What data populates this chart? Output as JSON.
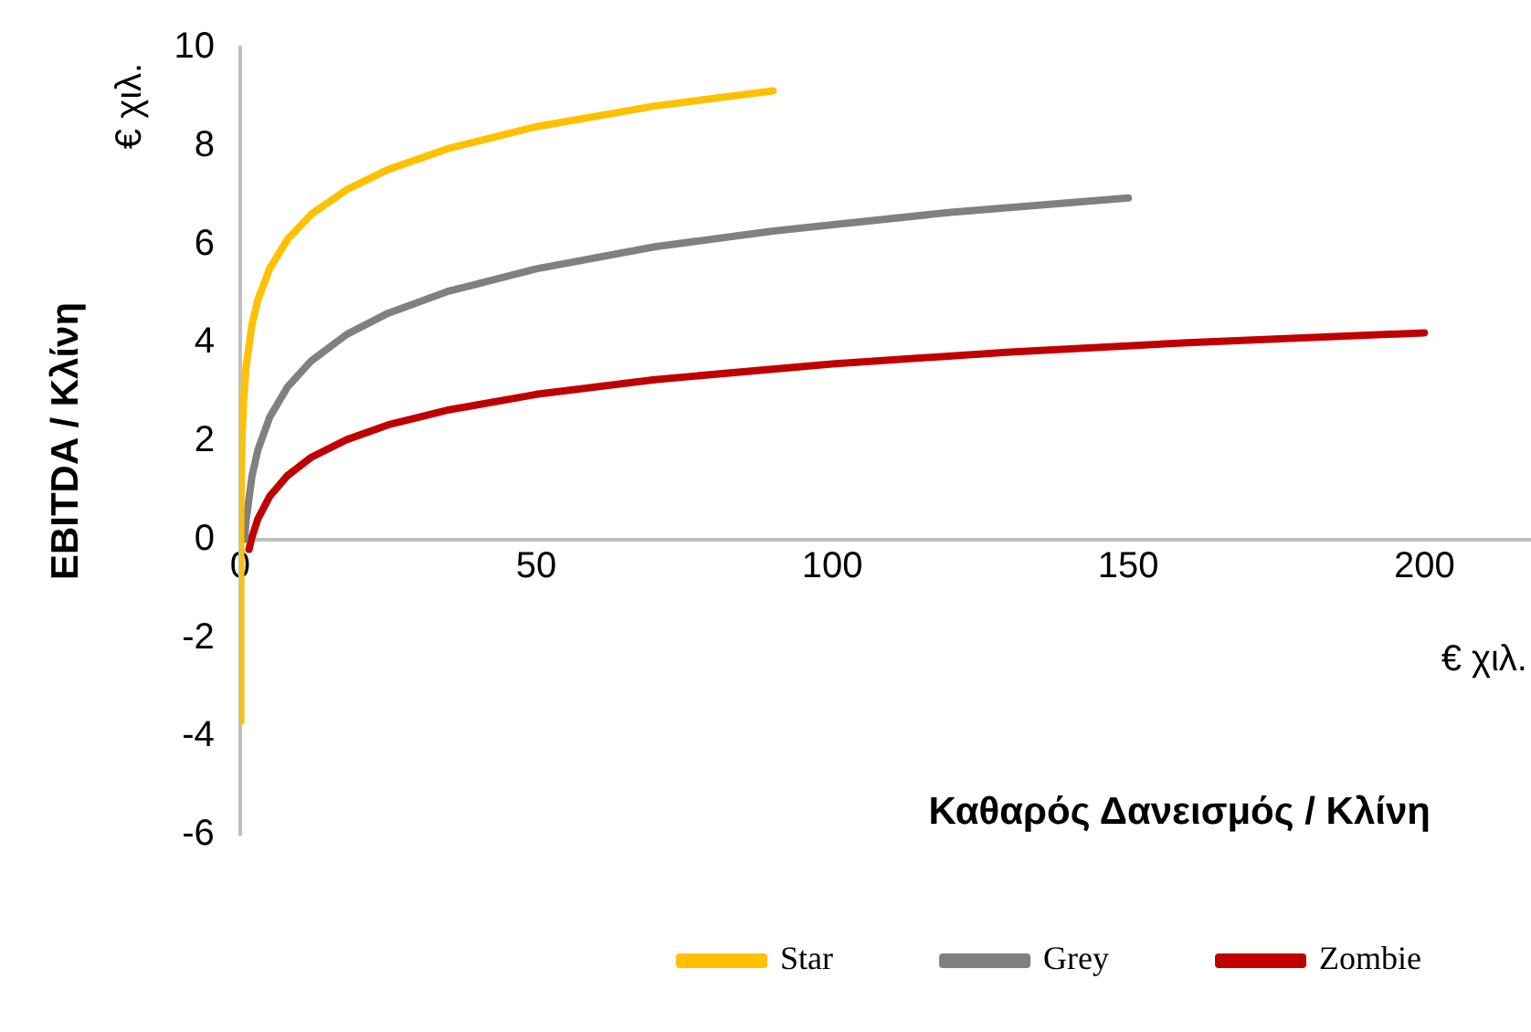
{
  "chart_data": {
    "type": "line",
    "xlabel": "Καθαρός Δανεισμός / Κλίνη",
    "ylabel": "EBITDA / Κλίνη",
    "annotations": [
      "€ χιλ.",
      "€ χιλ."
    ],
    "xlim": [
      0,
      218
    ],
    "xticks": [
      0,
      50,
      100,
      150,
      200
    ],
    "ylim": [
      -6,
      10
    ],
    "yticks": [
      -6,
      -4,
      -2,
      0,
      2,
      4,
      6,
      8,
      10
    ],
    "grid": false,
    "legend": "bottom",
    "marker": "none",
    "line_style": "solid",
    "series": [
      {
        "name": "Star",
        "color": "#ffc000",
        "x": [
          0.003,
          0.1,
          0.3,
          0.6,
          1,
          2,
          3,
          5,
          8,
          12,
          18,
          25,
          35,
          50,
          70,
          90
        ],
        "values": [
          -3.7,
          0.62,
          2.0,
          2.86,
          3.5,
          4.37,
          4.87,
          5.51,
          6.1,
          6.61,
          7.11,
          7.52,
          7.94,
          8.39,
          8.81,
          9.12
        ]
      },
      {
        "name": "Grey",
        "color": "#808080",
        "x": [
          0.75,
          1,
          2,
          3,
          5,
          8,
          12,
          18,
          25,
          35,
          50,
          70,
          90,
          120,
          150
        ],
        "values": [
          0.0,
          0.38,
          1.29,
          1.82,
          2.49,
          3.1,
          3.63,
          4.17,
          4.6,
          5.04,
          5.5,
          5.95,
          6.27,
          6.65,
          6.94
        ]
      },
      {
        "name": "Zombie",
        "color": "#c00000",
        "x": [
          1.5,
          2,
          3,
          5,
          8,
          12,
          18,
          25,
          35,
          50,
          70,
          100,
          130,
          160,
          200
        ],
        "values": [
          -0.2,
          0.05,
          0.42,
          0.88,
          1.3,
          1.67,
          2.03,
          2.33,
          2.63,
          2.95,
          3.25,
          3.57,
          3.81,
          4.0,
          4.2
        ]
      }
    ]
  }
}
